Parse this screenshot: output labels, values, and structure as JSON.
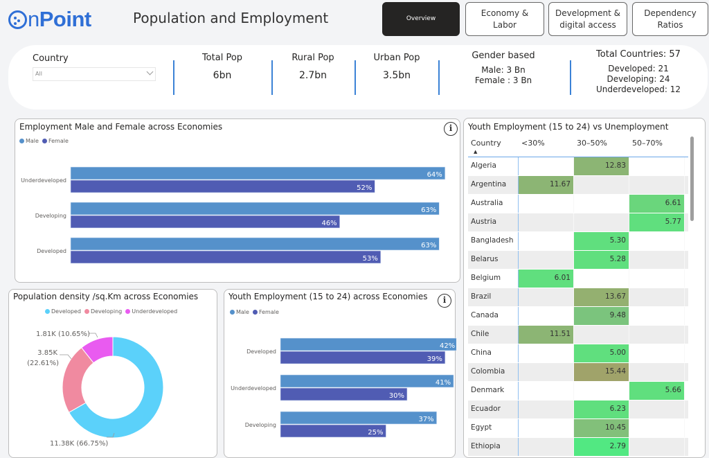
{
  "header": {
    "logo_text_n": "n",
    "logo_text_point": "Point",
    "title": "Population and Employment",
    "nav": [
      {
        "label": "Overview",
        "active": true
      },
      {
        "label": "Economy & Labor",
        "active": false
      },
      {
        "label": "Development & digital access",
        "active": false
      },
      {
        "label": "Dependency Ratios",
        "active": false
      }
    ]
  },
  "kpis": {
    "country_label": "Country",
    "country_selected": "All",
    "total_pop": {
      "title": "Total Pop",
      "value": "6bn"
    },
    "rural_pop": {
      "title": "Rural Pop",
      "value": "2.7bn"
    },
    "urban_pop": {
      "title": "Urban Pop",
      "value": "3.5bn"
    },
    "gender": {
      "title": "Gender based",
      "male": "Male: 3 Bn",
      "female": "Female : 3 Bn"
    },
    "countries": {
      "title": "Total Countries: 57",
      "developed": "Developed: 21",
      "developing": "Developing: 24",
      "underdeveloped": "Underdeveloped: 12"
    }
  },
  "colors": {
    "male": "#5591cb",
    "female": "#505cb3",
    "developed": "#5bd1fa",
    "developing": "#f08aa0",
    "underdeveloped": "#e95bf0",
    "kpi_separator": "#3b82d6"
  },
  "chart_data": [
    {
      "type": "bar",
      "orientation": "horizontal",
      "title": "Employment Male and Female across Economies",
      "legend": [
        "Male",
        "Female"
      ],
      "legend_position": "top-left",
      "categories": [
        "Underdeveloped",
        "Developing",
        "Developed"
      ],
      "series": [
        {
          "name": "Male",
          "values": [
            64,
            63,
            63
          ],
          "labels": [
            "64%",
            "63%",
            "63%"
          ]
        },
        {
          "name": "Female",
          "values": [
            52,
            46,
            53
          ],
          "labels": [
            "52%",
            "46%",
            "53%"
          ]
        }
      ],
      "unit": "%"
    },
    {
      "type": "pie",
      "donut": true,
      "title": "Population density /sq.Km across Economies",
      "legend": [
        "Developed",
        "Developing",
        "Underdeveloped"
      ],
      "legend_position": "top-center",
      "slices": [
        {
          "name": "Developed",
          "value": 11380,
          "percent": 66.75,
          "label": "11.38K (66.75%)"
        },
        {
          "name": "Developing",
          "value": 3850,
          "percent": 22.61,
          "label_line1": "3.85K",
          "label_line2": "(22.61%)"
        },
        {
          "name": "Underdeveloped",
          "value": 1810,
          "percent": 10.65,
          "label": "1.81K (10.65%)"
        }
      ]
    },
    {
      "type": "bar",
      "orientation": "horizontal",
      "title": "Youth Employment (15 to 24) across Economies",
      "legend": [
        "Male",
        "Female"
      ],
      "legend_position": "top-left",
      "categories": [
        "Developed",
        "Underdeveloped",
        "Developing"
      ],
      "series": [
        {
          "name": "Male",
          "values": [
            42,
            41,
            37
          ],
          "labels": [
            "42%",
            "41%",
            "37%"
          ]
        },
        {
          "name": "Female",
          "values": [
            39,
            30,
            25
          ],
          "labels": [
            "39%",
            "30%",
            "25%"
          ]
        }
      ],
      "unit": "%"
    },
    {
      "type": "table",
      "title": "Youth Employment (15 to 24) vs Unemployment",
      "columns": [
        "Country",
        "<30%",
        "30–50%",
        "50–70%"
      ],
      "sort": "Country ascending",
      "rows": [
        {
          "country": "Algeria",
          "values": [
            null,
            "12.83",
            null
          ]
        },
        {
          "country": "Argentina",
          "values": [
            "11.67",
            null,
            null
          ]
        },
        {
          "country": "Australia",
          "values": [
            null,
            null,
            "6.61"
          ]
        },
        {
          "country": "Austria",
          "values": [
            null,
            null,
            "5.77"
          ]
        },
        {
          "country": "Bangladesh",
          "values": [
            null,
            "5.30",
            null
          ]
        },
        {
          "country": "Belarus",
          "values": [
            null,
            "5.28",
            null
          ]
        },
        {
          "country": "Belgium",
          "values": [
            "6.01",
            null,
            null
          ]
        },
        {
          "country": "Brazil",
          "values": [
            null,
            "13.67",
            null
          ]
        },
        {
          "country": "Canada",
          "values": [
            null,
            "9.48",
            null
          ]
        },
        {
          "country": "Chile",
          "values": [
            "11.51",
            null,
            null
          ]
        },
        {
          "country": "China",
          "values": [
            null,
            "5.00",
            null
          ]
        },
        {
          "country": "Colombia",
          "values": [
            null,
            "15.44",
            null
          ]
        },
        {
          "country": "Denmark",
          "values": [
            null,
            null,
            "5.66"
          ]
        },
        {
          "country": "Ecuador",
          "values": [
            null,
            "6.23",
            null
          ]
        },
        {
          "country": "Egypt",
          "values": [
            null,
            "10.45",
            null
          ]
        },
        {
          "country": "Ethiopia",
          "values": [
            null,
            "2.79",
            null
          ]
        }
      ]
    }
  ]
}
